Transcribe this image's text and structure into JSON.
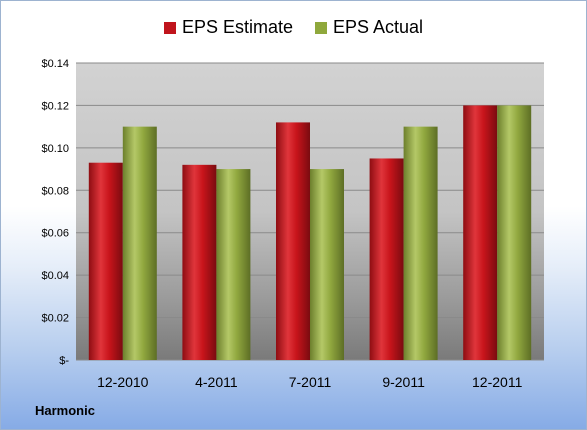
{
  "chart_data": {
    "type": "bar",
    "categories": [
      "12-2010",
      "4-2011",
      "7-2011",
      "9-2011",
      "12-2011"
    ],
    "series": [
      {
        "name": "EPS Estimate",
        "values": [
          0.093,
          0.092,
          0.112,
          0.095,
          0.12
        ],
        "color": "#c0141c"
      },
      {
        "name": "EPS Actual",
        "values": [
          0.11,
          0.09,
          0.09,
          0.11,
          0.12
        ],
        "color": "#8fa83c"
      }
    ],
    "y_ticks": [
      0,
      0.02,
      0.04,
      0.06,
      0.08,
      0.1,
      0.12,
      0.14
    ],
    "y_tick_labels": [
      "$-",
      "$0.02",
      "$0.04",
      "$0.06",
      "$0.08",
      "$0.10",
      "$0.12",
      "$0.14"
    ],
    "ylim": [
      0,
      0.14
    ],
    "grid": true,
    "legend_position": "top-center"
  },
  "footer": {
    "company": "Harmonic"
  }
}
